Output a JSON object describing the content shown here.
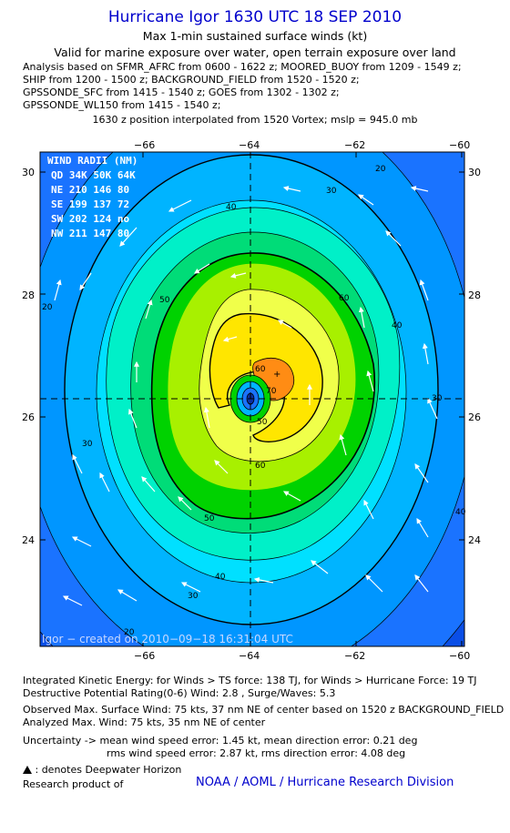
{
  "header": {
    "title": "Hurricane Igor 1630 UTC 18 SEP 2010",
    "subtitle1": "Max 1-min sustained surface winds (kt)",
    "subtitle2": "Valid for marine exposure over water, open terrain exposure over land",
    "analysis_lines": [
      "Analysis based on SFMR_AFRC from 0600 - 1622 z; MOORED_BUOY from 1209 - 1549 z;",
      "SHIP from 1200 - 1500 z; BACKGROUND_FIELD from 1520 - 1520 z;",
      "GPSSONDE_SFC from 1415 - 1540 z; GOES from 1302 - 1302 z;",
      "GPSSONDE_WL150 from 1415 - 1540 z;"
    ],
    "position_line": "1630 z position interpolated from 1520 Vortex; mslp = 945.0 mb"
  },
  "map": {
    "lon_ticks": [
      "−66",
      "−64",
      "−62",
      "−60"
    ],
    "lat_ticks": [
      "30",
      "28",
      "26",
      "24"
    ],
    "contour_labels": [
      "20",
      "30",
      "40",
      "50",
      "60",
      "70",
      "30",
      "40",
      "50",
      "60",
      "50",
      "60",
      "40",
      "30",
      "20",
      "20",
      "30",
      "40"
    ],
    "created_label": "Igor − created on 2010−09−18 16:31:04 UTC",
    "wind_radii": {
      "title": "WIND RADII (NM)",
      "header": "QD  34K  50K  64K",
      "rows": [
        "NE  210  146   80",
        "SE  199  137   72",
        "SW  202  124   no",
        "NW  211  147   80"
      ]
    },
    "colors": [
      "#0a4ee6",
      "#1a73ff",
      "#0096ff",
      "#00b4ff",
      "#00e0ff",
      "#00f0c8",
      "#00dc78",
      "#00d200",
      "#a8f000",
      "#f0ff4a",
      "#ffe600",
      "#ff8c14"
    ]
  },
  "footer": {
    "ike_line": "Integrated Kinetic Energy:  for Winds > TS force: 138 TJ,  for Winds > Hurricane Force: 19 TJ",
    "dpr_line": "Destructive Potential Rating(0-6)   Wind: 2.8 , Surge/Waves: 5.3",
    "obs_line": "Observed Max. Surface Wind: 75 kts, 37 nm NE of center based on 1520 z BACKGROUND_FIELD",
    "analyzed_line": "Analyzed Max. Wind: 75 kts, 35 nm NE of center",
    "uncert_line1": "Uncertainty -> mean wind speed error: 1.45 kt,   mean direction error: 0.21 deg",
    "uncert_line2": "rms wind speed error: 2.87 kt,   rms direction error: 4.08 deg",
    "deepwater": ": denotes Deepwater Horizon",
    "research": "Research product of",
    "org": "NOAA / AOML / Hurricane Research Division"
  }
}
